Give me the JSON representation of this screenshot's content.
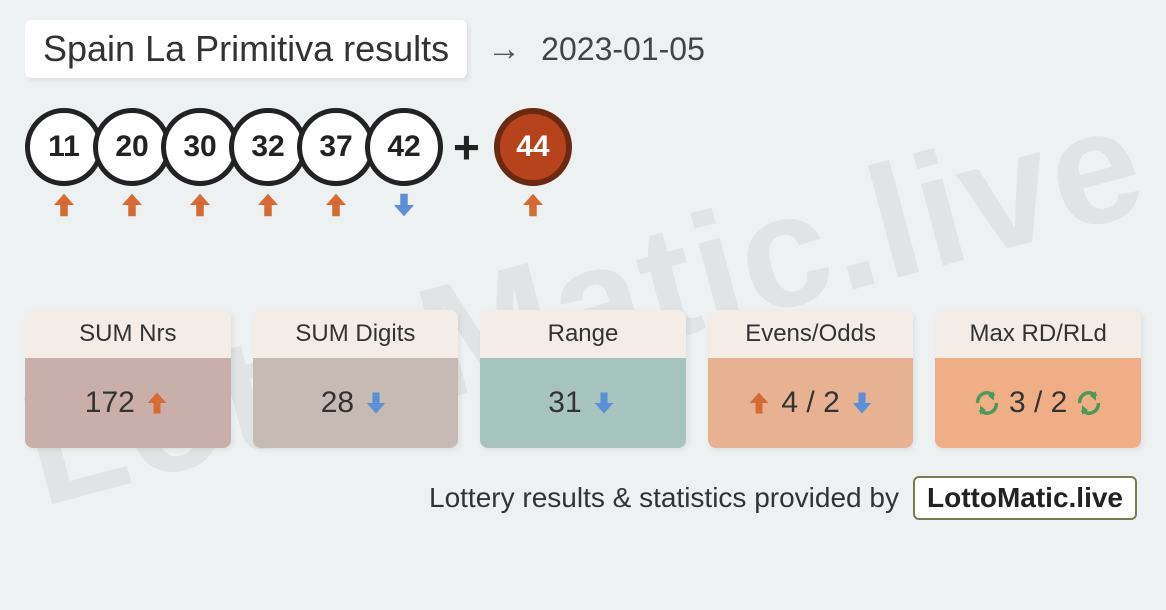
{
  "title": "Spain La Primitiva results",
  "date": "2023-01-05",
  "watermark": "LottoMatic.live",
  "colors": {
    "arrow_up": "#d56a33",
    "arrow_down": "#5b8fd6",
    "cycle": "#4a9958",
    "page_bg": "#edf1f2",
    "card_head_bg": "#f4ede7",
    "bonus_ball_fill": "#b6431b",
    "bonus_ball_border": "#6a2a12"
  },
  "balls": [
    {
      "number": "11",
      "direction": "up",
      "bonus": false
    },
    {
      "number": "20",
      "direction": "up",
      "bonus": false
    },
    {
      "number": "30",
      "direction": "up",
      "bonus": false
    },
    {
      "number": "32",
      "direction": "up",
      "bonus": false
    },
    {
      "number": "37",
      "direction": "up",
      "bonus": false
    },
    {
      "number": "42",
      "direction": "down",
      "bonus": false
    }
  ],
  "bonus_ball": {
    "number": "44",
    "direction": "up",
    "bonus": true
  },
  "plus_symbol": "+",
  "stats": [
    {
      "label": "SUM Nrs",
      "value": "172",
      "icons": [
        "up"
      ],
      "body_bg": "#c9afa9"
    },
    {
      "label": "SUM Digits",
      "value": "28",
      "icons": [
        "down"
      ],
      "body_bg": "#c5bbb4"
    },
    {
      "label": "Range",
      "value": "31",
      "icons": [
        "down"
      ],
      "body_bg": "#a6c3be"
    },
    {
      "label": "Evens/Odds",
      "value": "4 / 2",
      "icons": [
        "up",
        "down"
      ],
      "body_bg": "#e6b291",
      "split": true
    },
    {
      "label": "Max RD/RLd",
      "value": "3 / 2",
      "icons": [
        "cycle",
        "cycle"
      ],
      "body_bg": "#efae86",
      "split": true
    }
  ],
  "footer_text": "Lottery results & statistics provided by",
  "brand": "LottoMatic.live"
}
